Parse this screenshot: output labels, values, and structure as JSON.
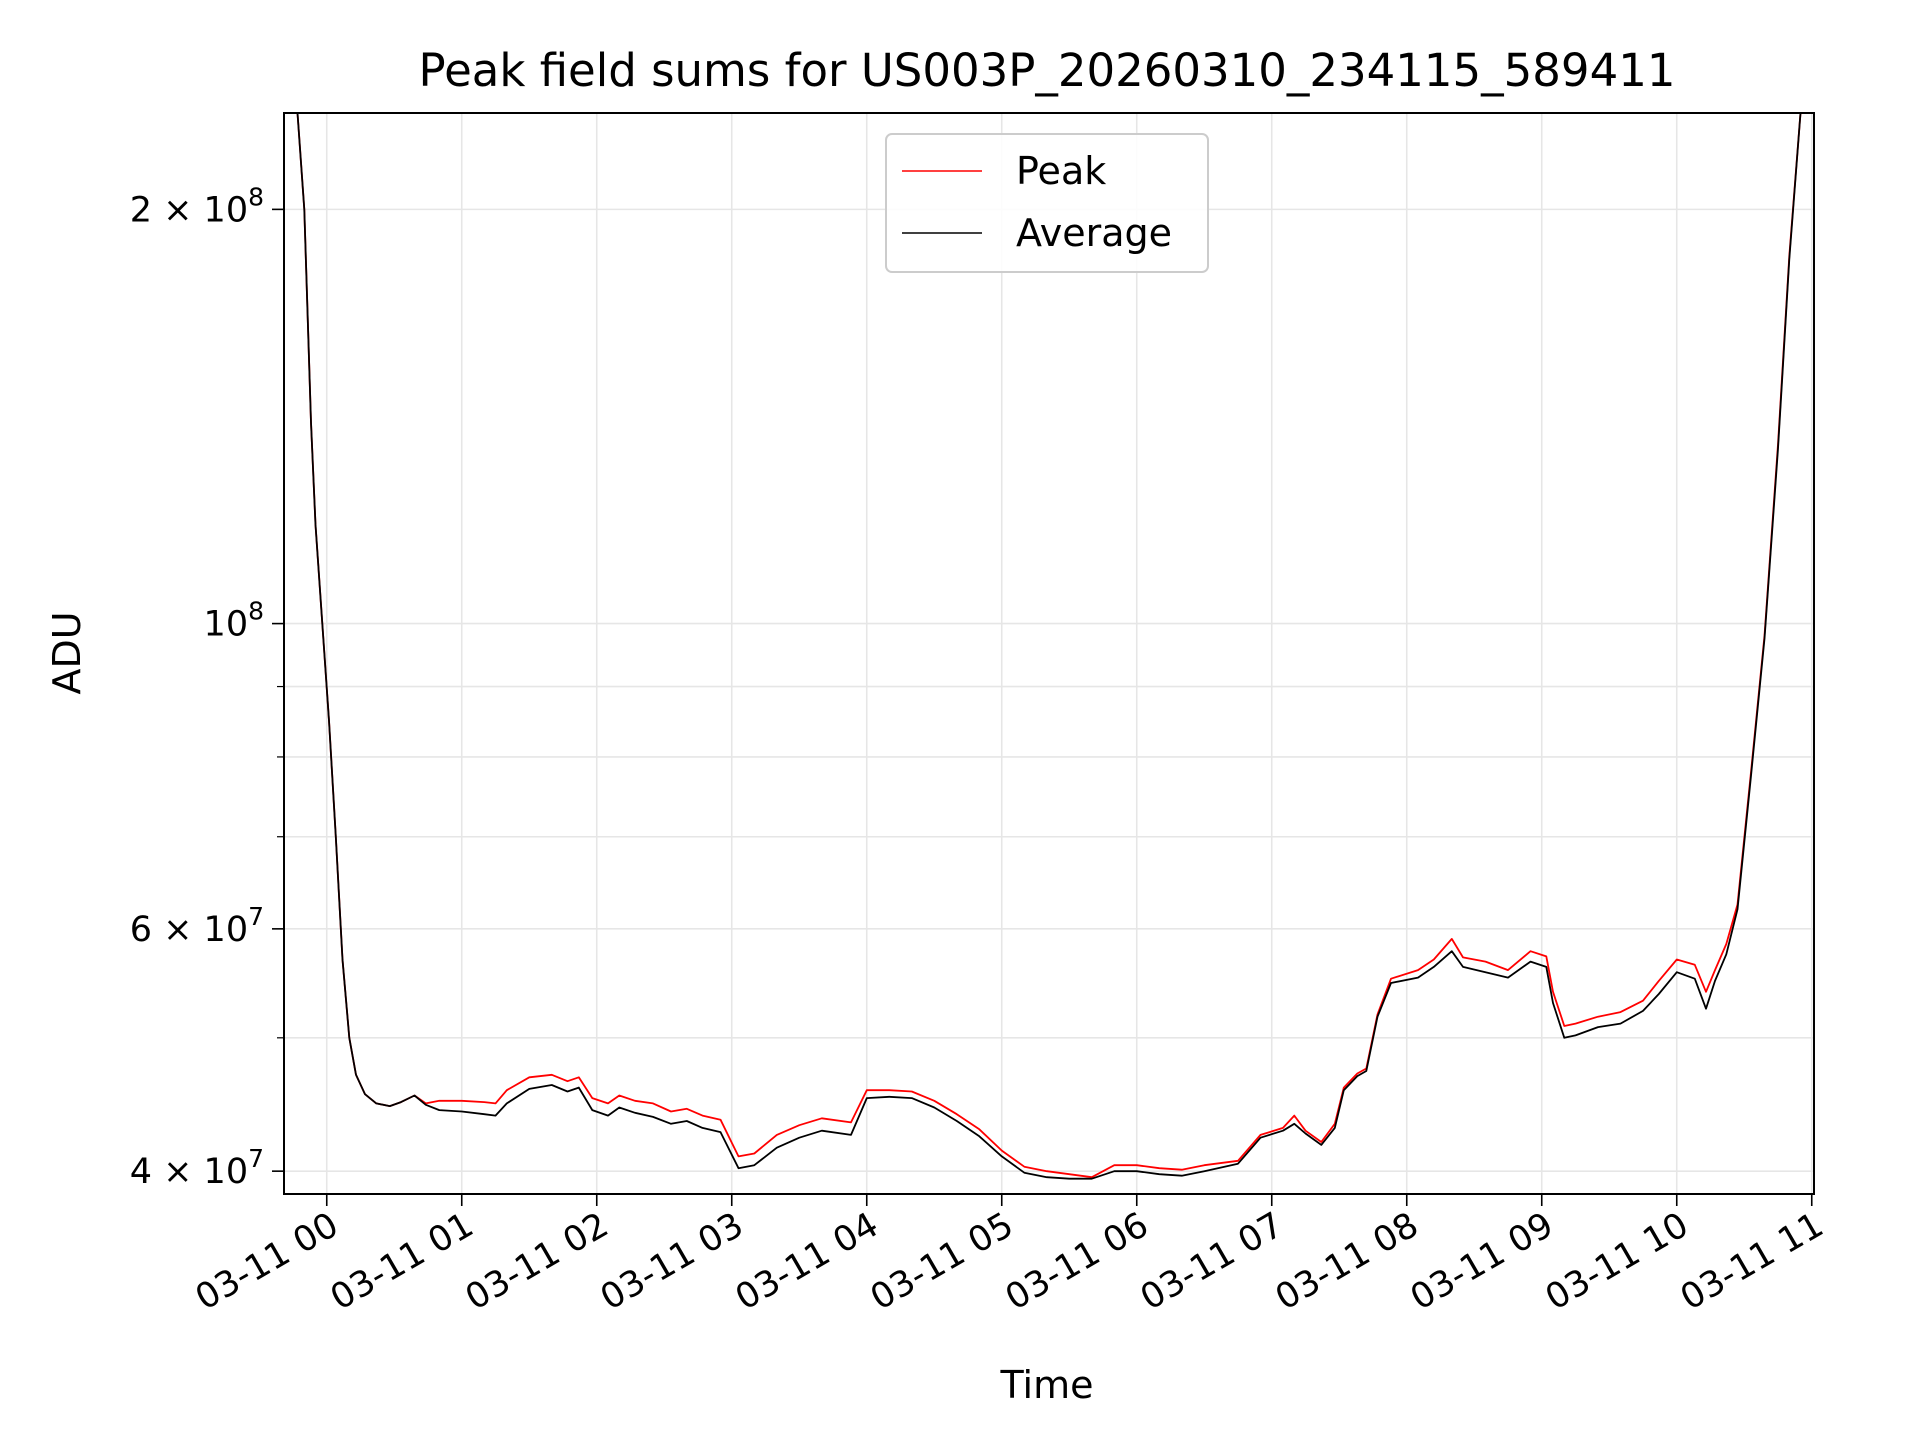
{
  "chart_data": {
    "type": "line",
    "title": "Peak field sums for US003P_20260310_234115_589411",
    "xlabel": "Time",
    "ylabel": "ADU",
    "x_scale": "time",
    "y_scale": "log",
    "xlim": [
      "2026-03-10T23:41",
      "2026-03-11T11:01"
    ],
    "ylim": [
      38500000,
      235000000
    ],
    "grid": true,
    "legend_position": "upper center",
    "x_ticks": [
      {
        "value": "2026-03-11T00:00",
        "label": "03-11 00"
      },
      {
        "value": "2026-03-11T01:00",
        "label": "03-11 01"
      },
      {
        "value": "2026-03-11T02:00",
        "label": "03-11 02"
      },
      {
        "value": "2026-03-11T03:00",
        "label": "03-11 03"
      },
      {
        "value": "2026-03-11T04:00",
        "label": "03-11 04"
      },
      {
        "value": "2026-03-11T05:00",
        "label": "03-11 05"
      },
      {
        "value": "2026-03-11T06:00",
        "label": "03-11 06"
      },
      {
        "value": "2026-03-11T07:00",
        "label": "03-11 07"
      },
      {
        "value": "2026-03-11T08:00",
        "label": "03-11 08"
      },
      {
        "value": "2026-03-11T09:00",
        "label": "03-11 09"
      },
      {
        "value": "2026-03-11T10:00",
        "label": "03-11 10"
      },
      {
        "value": "2026-03-11T11:00",
        "label": "03-11 11"
      }
    ],
    "y_major_ticks": [
      {
        "value": 40000000,
        "mantissa": "4",
        "exponent": "7"
      },
      {
        "value": 60000000,
        "mantissa": "6",
        "exponent": "7"
      },
      {
        "value": 100000000,
        "mantissa": "",
        "exponent": "8"
      },
      {
        "value": 200000000,
        "mantissa": "2",
        "exponent": "8"
      }
    ],
    "y_minor_ticks": [
      50000000,
      70000000,
      80000000,
      90000000
    ],
    "series": [
      {
        "name": "Peak",
        "color": "#ff0000",
        "points": [
          [
            "2026-03-10T23:47",
            235000000
          ],
          [
            "2026-03-10T23:50",
            200000000
          ],
          [
            "2026-03-10T23:53",
            140000000
          ],
          [
            "2026-03-10T23:55",
            118000000
          ],
          [
            "2026-03-10T23:58",
            100000000
          ],
          [
            "2026-03-11T00:01",
            85000000
          ],
          [
            "2026-03-11T00:04",
            70000000
          ],
          [
            "2026-03-11T00:07",
            57000000
          ],
          [
            "2026-03-11T00:10",
            50000000
          ],
          [
            "2026-03-11T00:13",
            47000000
          ],
          [
            "2026-03-11T00:17",
            45500000
          ],
          [
            "2026-03-11T00:22",
            44800000
          ],
          [
            "2026-03-11T00:28",
            44600000
          ],
          [
            "2026-03-11T00:33",
            44900000
          ],
          [
            "2026-03-11T00:39",
            45400000
          ],
          [
            "2026-03-11T00:44",
            44800000
          ],
          [
            "2026-03-11T00:50",
            45000000
          ],
          [
            "2026-03-11T01:00",
            45000000
          ],
          [
            "2026-03-11T01:10",
            44900000
          ],
          [
            "2026-03-11T01:15",
            44800000
          ],
          [
            "2026-03-11T01:20",
            45800000
          ],
          [
            "2026-03-11T01:30",
            46800000
          ],
          [
            "2026-03-11T01:40",
            47000000
          ],
          [
            "2026-03-11T01:47",
            46500000
          ],
          [
            "2026-03-11T01:52",
            46800000
          ],
          [
            "2026-03-11T01:58",
            45200000
          ],
          [
            "2026-03-11T02:05",
            44800000
          ],
          [
            "2026-03-11T02:10",
            45400000
          ],
          [
            "2026-03-11T02:17",
            45000000
          ],
          [
            "2026-03-11T02:25",
            44800000
          ],
          [
            "2026-03-11T02:33",
            44200000
          ],
          [
            "2026-03-11T02:40",
            44400000
          ],
          [
            "2026-03-11T02:47",
            43900000
          ],
          [
            "2026-03-11T02:55",
            43600000
          ],
          [
            "2026-03-11T03:03",
            41000000
          ],
          [
            "2026-03-11T03:10",
            41200000
          ],
          [
            "2026-03-11T03:20",
            42500000
          ],
          [
            "2026-03-11T03:30",
            43200000
          ],
          [
            "2026-03-11T03:40",
            43700000
          ],
          [
            "2026-03-11T03:53",
            43400000
          ],
          [
            "2026-03-11T04:00",
            45800000
          ],
          [
            "2026-03-11T04:10",
            45800000
          ],
          [
            "2026-03-11T04:20",
            45700000
          ],
          [
            "2026-03-11T04:30",
            45000000
          ],
          [
            "2026-03-11T04:40",
            44000000
          ],
          [
            "2026-03-11T04:50",
            42900000
          ],
          [
            "2026-03-11T05:00",
            41400000
          ],
          [
            "2026-03-11T05:10",
            40300000
          ],
          [
            "2026-03-11T05:20",
            40000000
          ],
          [
            "2026-03-11T05:30",
            39800000
          ],
          [
            "2026-03-11T05:40",
            39600000
          ],
          [
            "2026-03-11T05:50",
            40400000
          ],
          [
            "2026-03-11T06:00",
            40400000
          ],
          [
            "2026-03-11T06:10",
            40200000
          ],
          [
            "2026-03-11T06:20",
            40100000
          ],
          [
            "2026-03-11T06:30",
            40400000
          ],
          [
            "2026-03-11T06:45",
            40700000
          ],
          [
            "2026-03-11T06:55",
            42500000
          ],
          [
            "2026-03-11T07:05",
            43000000
          ],
          [
            "2026-03-11T07:10",
            43900000
          ],
          [
            "2026-03-11T07:15",
            42800000
          ],
          [
            "2026-03-11T07:22",
            42000000
          ],
          [
            "2026-03-11T07:28",
            43300000
          ],
          [
            "2026-03-11T07:32",
            46000000
          ],
          [
            "2026-03-11T07:38",
            47100000
          ],
          [
            "2026-03-11T07:42",
            47500000
          ],
          [
            "2026-03-11T07:47",
            52000000
          ],
          [
            "2026-03-11T07:53",
            55200000
          ],
          [
            "2026-03-11T08:05",
            56000000
          ],
          [
            "2026-03-11T08:12",
            57000000
          ],
          [
            "2026-03-11T08:20",
            59000000
          ],
          [
            "2026-03-11T08:25",
            57200000
          ],
          [
            "2026-03-11T08:35",
            56800000
          ],
          [
            "2026-03-11T08:45",
            56000000
          ],
          [
            "2026-03-11T08:55",
            57800000
          ],
          [
            "2026-03-11T09:02",
            57300000
          ],
          [
            "2026-03-11T09:05",
            54000000
          ],
          [
            "2026-03-11T09:10",
            51000000
          ],
          [
            "2026-03-11T09:15",
            51200000
          ],
          [
            "2026-03-11T09:25",
            51800000
          ],
          [
            "2026-03-11T09:35",
            52200000
          ],
          [
            "2026-03-11T09:45",
            53200000
          ],
          [
            "2026-03-11T09:52",
            55000000
          ],
          [
            "2026-03-11T10:00",
            57000000
          ],
          [
            "2026-03-11T10:08",
            56500000
          ],
          [
            "2026-03-11T10:13",
            54000000
          ],
          [
            "2026-03-11T10:17",
            56000000
          ],
          [
            "2026-03-11T10:22",
            58500000
          ],
          [
            "2026-03-11T10:27",
            62500000
          ],
          [
            "2026-03-11T10:33",
            78000000
          ],
          [
            "2026-03-11T10:39",
            98000000
          ],
          [
            "2026-03-11T10:45",
            135000000
          ],
          [
            "2026-03-11T10:50",
            185000000
          ],
          [
            "2026-03-11T10:55",
            235000000
          ]
        ]
      },
      {
        "name": "Average",
        "color": "#000000",
        "points": [
          [
            "2026-03-10T23:47",
            235000000
          ],
          [
            "2026-03-10T23:50",
            200000000
          ],
          [
            "2026-03-10T23:53",
            140000000
          ],
          [
            "2026-03-10T23:55",
            118000000
          ],
          [
            "2026-03-10T23:58",
            100000000
          ],
          [
            "2026-03-11T00:01",
            85000000
          ],
          [
            "2026-03-11T00:04",
            70000000
          ],
          [
            "2026-03-11T00:07",
            57000000
          ],
          [
            "2026-03-11T00:10",
            50000000
          ],
          [
            "2026-03-11T00:13",
            47000000
          ],
          [
            "2026-03-11T00:17",
            45500000
          ],
          [
            "2026-03-11T00:22",
            44800000
          ],
          [
            "2026-03-11T00:28",
            44600000
          ],
          [
            "2026-03-11T00:33",
            44900000
          ],
          [
            "2026-03-11T00:39",
            45400000
          ],
          [
            "2026-03-11T00:44",
            44700000
          ],
          [
            "2026-03-11T00:50",
            44300000
          ],
          [
            "2026-03-11T01:00",
            44200000
          ],
          [
            "2026-03-11T01:10",
            44000000
          ],
          [
            "2026-03-11T01:15",
            43900000
          ],
          [
            "2026-03-11T01:20",
            44800000
          ],
          [
            "2026-03-11T01:30",
            45900000
          ],
          [
            "2026-03-11T01:40",
            46200000
          ],
          [
            "2026-03-11T01:47",
            45700000
          ],
          [
            "2026-03-11T01:52",
            46000000
          ],
          [
            "2026-03-11T01:58",
            44300000
          ],
          [
            "2026-03-11T02:05",
            43900000
          ],
          [
            "2026-03-11T02:10",
            44500000
          ],
          [
            "2026-03-11T02:17",
            44100000
          ],
          [
            "2026-03-11T02:25",
            43800000
          ],
          [
            "2026-03-11T02:33",
            43300000
          ],
          [
            "2026-03-11T02:40",
            43500000
          ],
          [
            "2026-03-11T02:47",
            43000000
          ],
          [
            "2026-03-11T02:55",
            42700000
          ],
          [
            "2026-03-11T03:03",
            40200000
          ],
          [
            "2026-03-11T03:10",
            40400000
          ],
          [
            "2026-03-11T03:20",
            41600000
          ],
          [
            "2026-03-11T03:30",
            42300000
          ],
          [
            "2026-03-11T03:40",
            42800000
          ],
          [
            "2026-03-11T03:53",
            42500000
          ],
          [
            "2026-03-11T04:00",
            45200000
          ],
          [
            "2026-03-11T04:10",
            45300000
          ],
          [
            "2026-03-11T04:20",
            45200000
          ],
          [
            "2026-03-11T04:30",
            44500000
          ],
          [
            "2026-03-11T04:40",
            43500000
          ],
          [
            "2026-03-11T04:50",
            42400000
          ],
          [
            "2026-03-11T05:00",
            41000000
          ],
          [
            "2026-03-11T05:10",
            39900000
          ],
          [
            "2026-03-11T05:20",
            39600000
          ],
          [
            "2026-03-11T05:30",
            39500000
          ],
          [
            "2026-03-11T05:40",
            39500000
          ],
          [
            "2026-03-11T05:50",
            40000000
          ],
          [
            "2026-03-11T06:00",
            40000000
          ],
          [
            "2026-03-11T06:10",
            39800000
          ],
          [
            "2026-03-11T06:20",
            39700000
          ],
          [
            "2026-03-11T06:30",
            40000000
          ],
          [
            "2026-03-11T06:45",
            40500000
          ],
          [
            "2026-03-11T06:55",
            42300000
          ],
          [
            "2026-03-11T07:05",
            42800000
          ],
          [
            "2026-03-11T07:10",
            43300000
          ],
          [
            "2026-03-11T07:15",
            42600000
          ],
          [
            "2026-03-11T07:22",
            41800000
          ],
          [
            "2026-03-11T07:28",
            43000000
          ],
          [
            "2026-03-11T07:32",
            45800000
          ],
          [
            "2026-03-11T07:38",
            46900000
          ],
          [
            "2026-03-11T07:42",
            47300000
          ],
          [
            "2026-03-11T07:47",
            51800000
          ],
          [
            "2026-03-11T07:53",
            54800000
          ],
          [
            "2026-03-11T08:05",
            55300000
          ],
          [
            "2026-03-11T08:12",
            56300000
          ],
          [
            "2026-03-11T08:20",
            57800000
          ],
          [
            "2026-03-11T08:25",
            56300000
          ],
          [
            "2026-03-11T08:35",
            55800000
          ],
          [
            "2026-03-11T08:45",
            55300000
          ],
          [
            "2026-03-11T08:55",
            56800000
          ],
          [
            "2026-03-11T09:02",
            56300000
          ],
          [
            "2026-03-11T09:05",
            53000000
          ],
          [
            "2026-03-11T09:10",
            50000000
          ],
          [
            "2026-03-11T09:15",
            50200000
          ],
          [
            "2026-03-11T09:25",
            50900000
          ],
          [
            "2026-03-11T09:35",
            51200000
          ],
          [
            "2026-03-11T09:45",
            52300000
          ],
          [
            "2026-03-11T09:52",
            53800000
          ],
          [
            "2026-03-11T10:00",
            55800000
          ],
          [
            "2026-03-11T10:08",
            55200000
          ],
          [
            "2026-03-11T10:13",
            52500000
          ],
          [
            "2026-03-11T10:17",
            55000000
          ],
          [
            "2026-03-11T10:22",
            57500000
          ],
          [
            "2026-03-11T10:27",
            62000000
          ],
          [
            "2026-03-11T10:33",
            77500000
          ],
          [
            "2026-03-11T10:39",
            97500000
          ],
          [
            "2026-03-11T10:45",
            134000000
          ],
          [
            "2026-03-11T10:50",
            184000000
          ],
          [
            "2026-03-11T10:55",
            235000000
          ]
        ]
      }
    ]
  }
}
